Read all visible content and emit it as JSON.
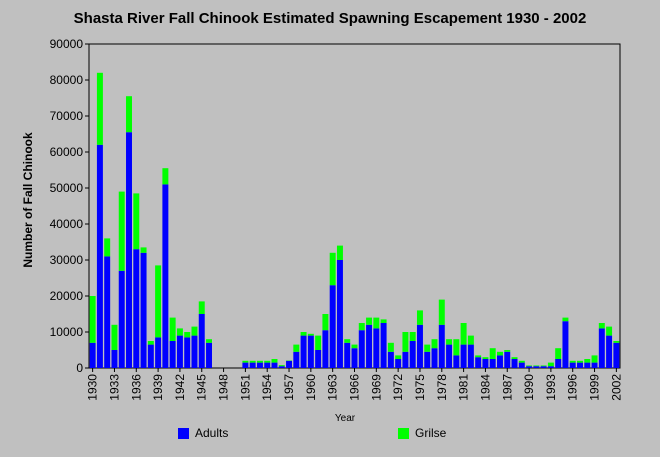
{
  "chart_data": {
    "type": "bar",
    "stacked": true,
    "title": "Shasta River Fall Chinook Estimated Spawning Escapement 1930 - 2002",
    "xlabel": "Year",
    "ylabel": "Number of Fall Chinook",
    "ylim": [
      0,
      90000
    ],
    "yticks": [
      "0",
      "10000",
      "20000",
      "30000",
      "40000",
      "50000",
      "60000",
      "70000",
      "80000",
      "90000"
    ],
    "xticks": [
      "1930",
      "1933",
      "1936",
      "1939",
      "1942",
      "1945",
      "1948",
      "1951",
      "1954",
      "1957",
      "1960",
      "1963",
      "1966",
      "1969",
      "1972",
      "1975",
      "1978",
      "1981",
      "1984",
      "1987",
      "1990",
      "1993",
      "1996",
      "1999",
      "2002"
    ],
    "grid": false,
    "legend_position": "bottom",
    "colors": {
      "Adults": "#0000ff",
      "Grilse": "#00ff00",
      "background": "#c0c0c0",
      "plot_background": "#c0c0c0"
    },
    "categories": [
      "1930",
      "1931",
      "1932",
      "1933",
      "1934",
      "1935",
      "1936",
      "1937",
      "1938",
      "1939",
      "1940",
      "1941",
      "1942",
      "1943",
      "1944",
      "1945",
      "1946",
      "1947",
      "1948",
      "1949",
      "1950",
      "1951",
      "1952",
      "1953",
      "1954",
      "1955",
      "1956",
      "1957",
      "1958",
      "1959",
      "1960",
      "1961",
      "1962",
      "1963",
      "1964",
      "1965",
      "1966",
      "1967",
      "1968",
      "1969",
      "1970",
      "1971",
      "1972",
      "1973",
      "1974",
      "1975",
      "1976",
      "1977",
      "1978",
      "1979",
      "1980",
      "1981",
      "1982",
      "1983",
      "1984",
      "1985",
      "1986",
      "1987",
      "1988",
      "1989",
      "1990",
      "1991",
      "1992",
      "1993",
      "1994",
      "1995",
      "1996",
      "1997",
      "1998",
      "1999",
      "2000",
      "2001",
      "2002"
    ],
    "series": [
      {
        "name": "Adults",
        "values": [
          7000,
          62000,
          31000,
          5000,
          27000,
          65500,
          33000,
          32000,
          6500,
          8500,
          51000,
          7500,
          9000,
          8500,
          9000,
          15000,
          7000,
          0,
          0,
          0,
          0,
          1500,
          1500,
          1500,
          1500,
          1500,
          500,
          2000,
          4500,
          9000,
          9000,
          5000,
          10500,
          23000,
          30000,
          7000,
          5500,
          10500,
          12000,
          11000,
          12500,
          4500,
          2500,
          4500,
          7500,
          12000,
          4500,
          5500,
          12000,
          6500,
          3500,
          6500,
          6500,
          3000,
          2500,
          2500,
          3500,
          4500,
          2500,
          1500,
          500,
          500,
          500,
          500,
          2500,
          13000,
          1500,
          1500,
          1500,
          1500,
          11000,
          9000,
          7000
        ]
      },
      {
        "name": "Grilse",
        "values": [
          13000,
          20000,
          5000,
          7000,
          22000,
          10000,
          15500,
          1500,
          1000,
          20000,
          4500,
          6500,
          2000,
          1500,
          2500,
          3500,
          1000,
          0,
          0,
          0,
          0,
          500,
          500,
          500,
          500,
          1000,
          300,
          100,
          2000,
          1000,
          500,
          4000,
          4500,
          9000,
          4000,
          1000,
          1000,
          2000,
          2000,
          3000,
          1000,
          2500,
          1000,
          5500,
          2500,
          4000,
          2000,
          2500,
          7000,
          1500,
          4500,
          6000,
          2500,
          500,
          500,
          3000,
          1000,
          500,
          500,
          500,
          200,
          200,
          200,
          1000,
          3000,
          1000,
          500,
          500,
          1000,
          2000,
          1500,
          2500,
          500
        ]
      }
    ]
  }
}
